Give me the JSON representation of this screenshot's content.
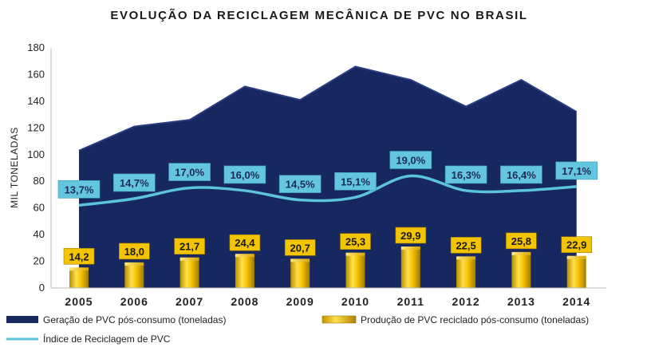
{
  "chart_data": {
    "type": "area",
    "title": "EVOLUÇÃO DA RECICLAGEM MECÂNICA DE PVC NO BRASIL",
    "xlabel": "",
    "ylabel": "MIL TONELADAS",
    "ylim": [
      0,
      180
    ],
    "yticks": [
      0,
      20,
      40,
      60,
      80,
      100,
      120,
      140,
      160,
      180
    ],
    "categories": [
      "2005",
      "2006",
      "2007",
      "2008",
      "2009",
      "2010",
      "2011",
      "2012",
      "2013",
      "2014"
    ],
    "series": [
      {
        "name": "Geração de PVC pós-consumo (toneladas)",
        "type": "area",
        "color": "#17275f",
        "values": [
          103,
          121,
          126,
          151,
          141,
          166,
          156,
          136,
          156,
          132
        ]
      },
      {
        "name": "Produção de PVC reciclado pós-consumo (toneladas)",
        "type": "bar",
        "color": "#f2c200",
        "values": [
          14.2,
          18.0,
          21.7,
          24.4,
          20.7,
          25.3,
          29.9,
          22.5,
          25.8,
          22.9
        ],
        "labels": [
          "14,2",
          "18,0",
          "21,7",
          "24,4",
          "20,7",
          "25,3",
          "29,9",
          "22,5",
          "25,8",
          "22,9"
        ]
      },
      {
        "name": "Índice de Reciclagem de PVC",
        "type": "line",
        "color": "#5bc4dc",
        "values": [
          62,
          67,
          75,
          73,
          66,
          68,
          84,
          73,
          73,
          76
        ],
        "labels": [
          "13,7%",
          "14,7%",
          "17,0%",
          "16,0%",
          "14,5%",
          "15,1%",
          "19,0%",
          "16,3%",
          "16,4%",
          "17,1%"
        ]
      }
    ],
    "legend": [
      "Geração de PVC pós-consumo (toneladas)",
      "Produção de PVC reciclado pós-consumo (toneladas)",
      "Índice de Reciclagem de PVC"
    ],
    "legend_position": "bottom",
    "grid": false
  }
}
